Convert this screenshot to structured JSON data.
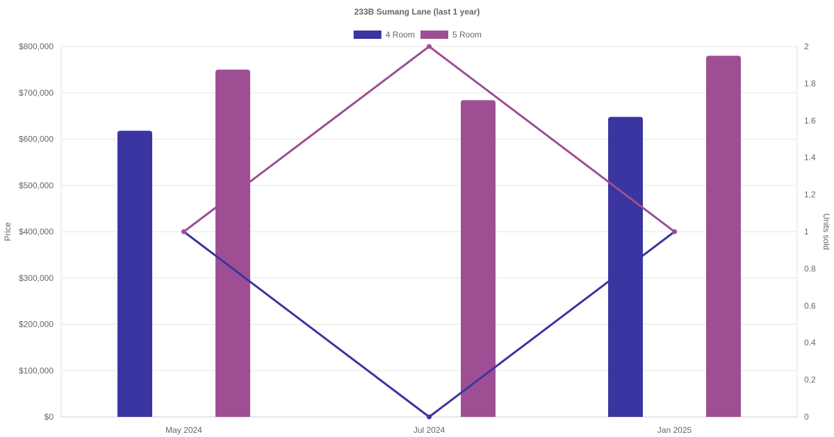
{
  "chart_data": {
    "type": "bar",
    "title": "233B Sumang Lane (last 1 year)",
    "categories": [
      "May 2024",
      "Jul 2024",
      "Jan 2025"
    ],
    "series": [
      {
        "name": "4 Room",
        "type": "bar",
        "axis": "left",
        "values": [
          618000,
          null,
          648000
        ],
        "color": "#3a35a0"
      },
      {
        "name": "5 Room",
        "type": "bar",
        "axis": "left",
        "values": [
          750000,
          684000,
          780000
        ],
        "color": "#9e4f93"
      },
      {
        "name": "4 Room",
        "type": "line",
        "axis": "right",
        "values": [
          1,
          0,
          1
        ],
        "color": "#3a35a0"
      },
      {
        "name": "5 Room",
        "type": "line",
        "axis": "right",
        "values": [
          1,
          2,
          1
        ],
        "color": "#9e4f93"
      }
    ],
    "legend": {
      "position": "top",
      "items": [
        {
          "label": "4 Room",
          "color": "#3a35a0"
        },
        {
          "label": "5 Room",
          "color": "#9e4f93"
        }
      ]
    },
    "y_left": {
      "label": "Price",
      "range": [
        0,
        800000
      ],
      "tick_labels": [
        "$0",
        "$100,000",
        "$200,000",
        "$300,000",
        "$400,000",
        "$500,000",
        "$600,000",
        "$700,000",
        "$800,000"
      ]
    },
    "y_right": {
      "label": "Units sold",
      "range": [
        0,
        2
      ],
      "tick_labels": [
        "0",
        "0.2",
        "0.4",
        "0.6",
        "0.8",
        "1",
        "1.2",
        "1.4",
        "1.6",
        "1.8",
        "2"
      ]
    },
    "grid": true
  }
}
